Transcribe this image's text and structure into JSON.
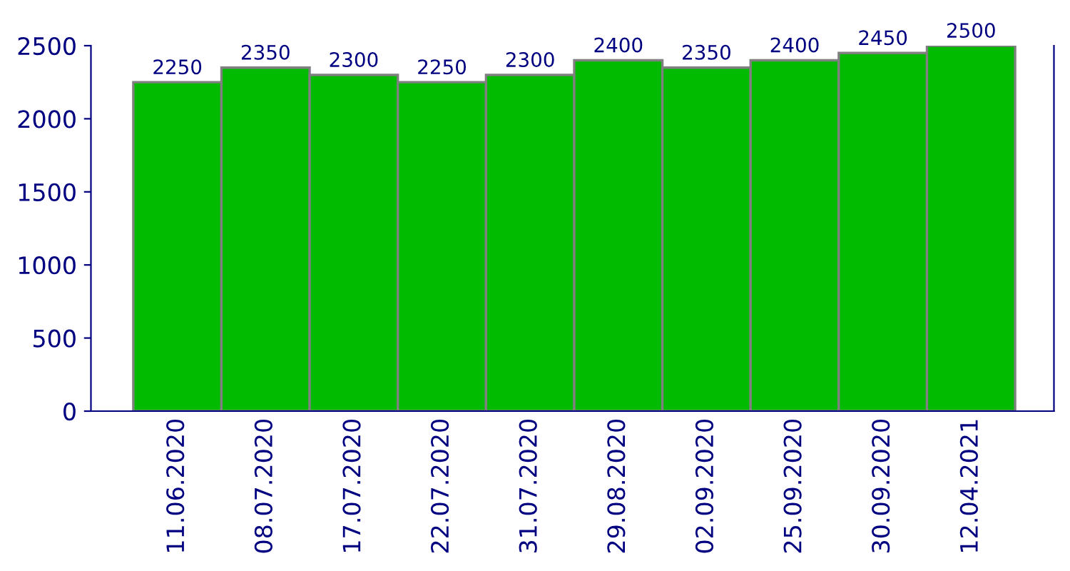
{
  "chart_data": {
    "type": "bar",
    "categories": [
      "11.06.2020",
      "08.07.2020",
      "17.07.2020",
      "22.07.2020",
      "31.07.2020",
      "29.08.2020",
      "02.09.2020",
      "25.09.2020",
      "30.09.2020",
      "12.04.2021"
    ],
    "values": [
      2250,
      2350,
      2300,
      2250,
      2300,
      2400,
      2350,
      2400,
      2450,
      2500
    ],
    "color": "#00bb00",
    "ylim": [
      0,
      2500
    ],
    "yticks": [
      0,
      500,
      1000,
      1500,
      2000,
      2500
    ],
    "data_labels": true,
    "grid": false
  }
}
